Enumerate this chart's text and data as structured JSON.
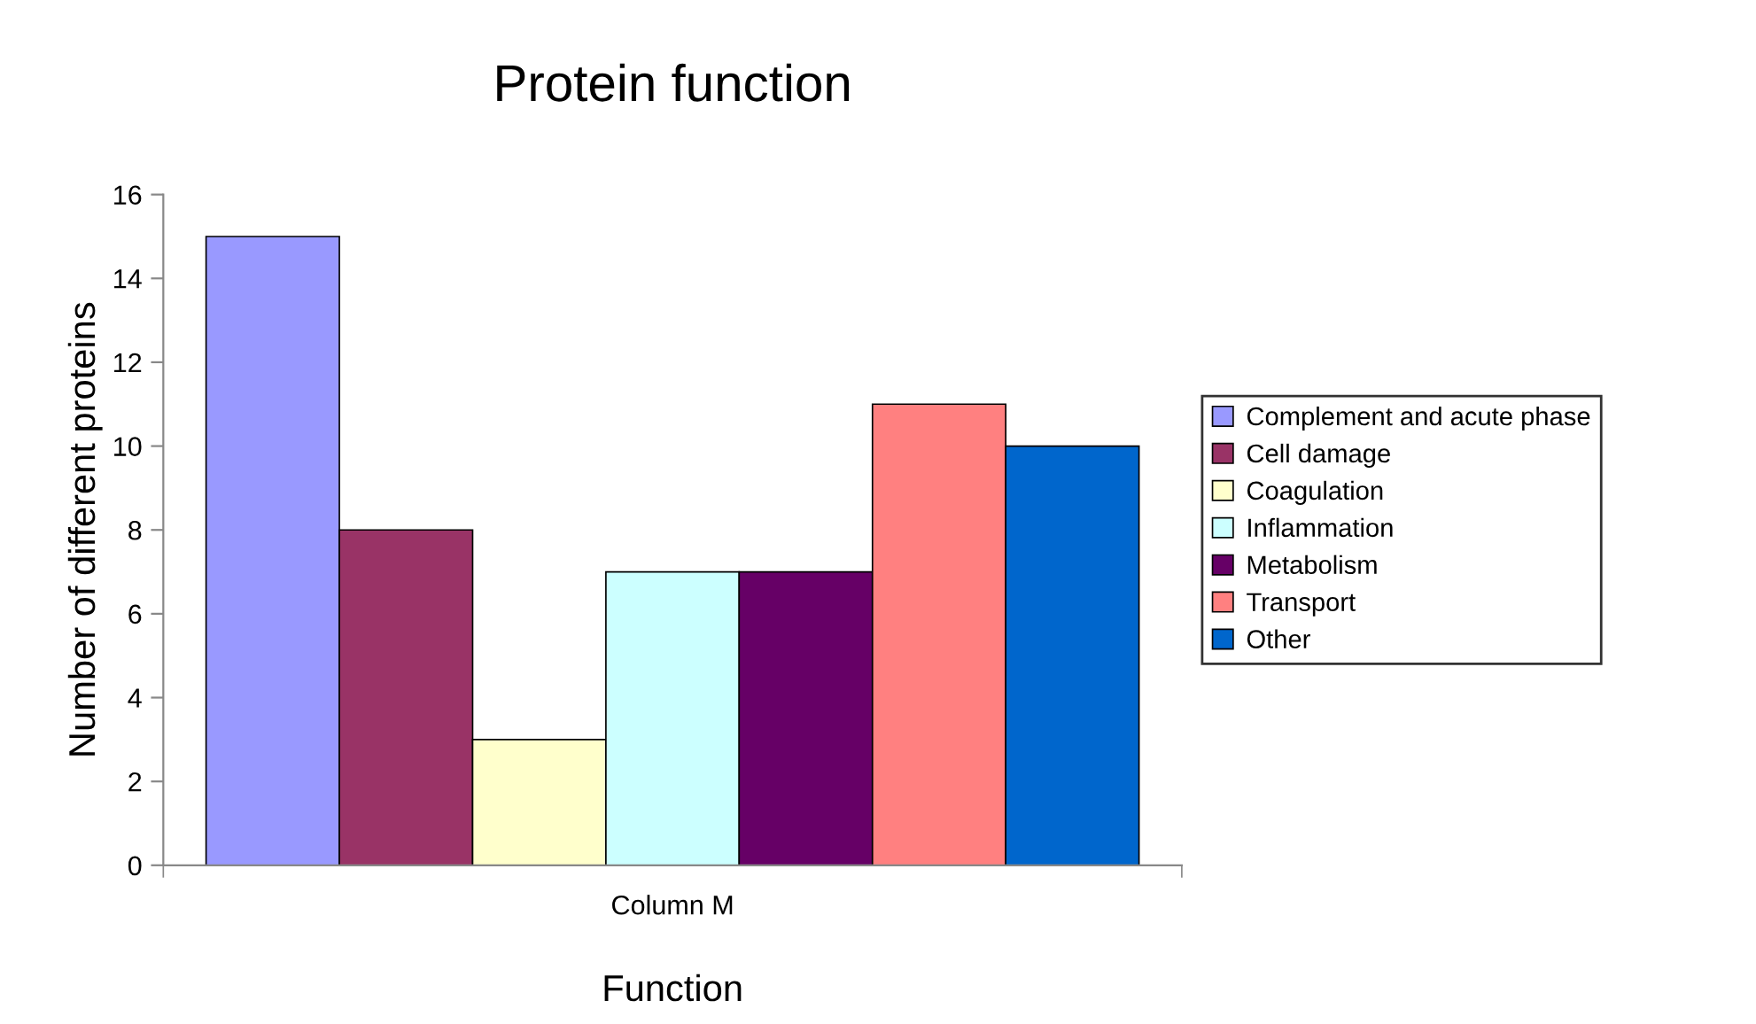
{
  "chart_data": {
    "type": "bar",
    "title": "Protein function",
    "xlabel": "Function",
    "ylabel": "Number of different proteins",
    "categories": [
      "Column M"
    ],
    "series": [
      {
        "name": "Complement and acute phase",
        "color": "#9999ff",
        "values": [
          15
        ]
      },
      {
        "name": "Cell damage",
        "color": "#993366",
        "values": [
          8
        ]
      },
      {
        "name": "Coagulation",
        "color": "#ffffcc",
        "values": [
          3
        ]
      },
      {
        "name": "Inflammation",
        "color": "#ccffff",
        "values": [
          7
        ]
      },
      {
        "name": "Metabolism",
        "color": "#660066",
        "values": [
          7
        ]
      },
      {
        "name": "Transport",
        "color": "#ff8080",
        "values": [
          11
        ]
      },
      {
        "name": "Other",
        "color": "#0066cc",
        "values": [
          10
        ]
      }
    ],
    "ylim": [
      0,
      16
    ],
    "yticks": [
      0,
      2,
      4,
      6,
      8,
      10,
      12,
      14,
      16
    ],
    "grid": false,
    "legend": "right"
  }
}
